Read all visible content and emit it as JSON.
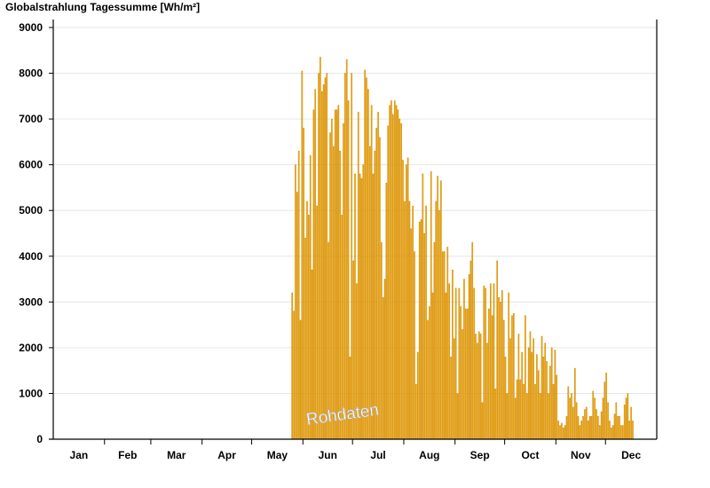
{
  "chart_data": {
    "type": "bar",
    "title": "Globalstrahlung Tagessumme [Wh/m²]",
    "watermark": "Rohdaten",
    "xlabel": "",
    "ylabel": "",
    "ylim": [
      0,
      9200
    ],
    "yticks": [
      "0",
      "1000",
      "2000",
      "3000",
      "4000",
      "5000",
      "6000",
      "7000",
      "8000",
      "9000"
    ],
    "months": [
      "Jan",
      "Feb",
      "Mar",
      "Apr",
      "May",
      "Jun",
      "Jul",
      "Aug",
      "Sep",
      "Oct",
      "Nov",
      "Dec"
    ],
    "days_in_month": [
      31,
      28,
      31,
      30,
      31,
      30,
      31,
      31,
      30,
      31,
      30,
      31
    ],
    "grid": "horizontal",
    "bar_color": "#FFB300",
    "bar_edge_color": "#C98200",
    "series": [
      {
        "first_day_of_year": 144,
        "values": [
          3200,
          2800,
          6000,
          5400,
          6300,
          2600,
          8050,
          6800,
          4400,
          5200,
          4900,
          6200,
          3700,
          7200,
          7650,
          5100,
          8000,
          8350,
          7600,
          7750,
          7900,
          8000,
          4300,
          6700,
          7000,
          6400,
          7200,
          7200,
          7300,
          6300,
          4900,
          6900,
          8000,
          8300,
          7400,
          1800,
          8000,
          3900,
          5800,
          3400,
          7150,
          5800,
          5700,
          6000,
          8070,
          7900,
          7650,
          6400,
          7300,
          5800,
          6300,
          6800,
          7150,
          6600,
          4300,
          3100,
          3500,
          5600,
          6850,
          7300,
          7400,
          7100,
          7400,
          7300,
          7200,
          7000,
          6900,
          6100,
          5200,
          6000,
          6150,
          5200,
          4600,
          5100,
          4100,
          1200,
          1900,
          4750,
          4800,
          5800,
          4500,
          5100,
          2600,
          2900,
          5850,
          3200,
          4300,
          5200,
          5750,
          5000,
          5650,
          4100,
          4100,
          3200,
          4200,
          3400,
          1800,
          3700,
          2200,
          3300,
          1000,
          3300,
          2900,
          2400,
          3500,
          2850,
          2850,
          3600,
          3900,
          4300,
          3300,
          2300,
          2100,
          2350,
          2300,
          800,
          3350,
          3300,
          2100,
          2850,
          3400,
          2700,
          3400,
          1100,
          3900,
          3100,
          3000,
          3250,
          2600,
          1800,
          1000,
          3200,
          2200,
          2700,
          2750,
          900,
          1300,
          2300,
          1300,
          1900,
          1200,
          2700,
          1000,
          2000,
          2350,
          1900,
          2200,
          1200,
          1850,
          1500,
          1000,
          2250,
          1800,
          2100,
          1700,
          1000,
          1600,
          2000,
          1200,
          1950,
          1400,
          400,
          300,
          350,
          250,
          300,
          500,
          1150,
          900,
          1000,
          700,
          1550,
          800,
          500,
          300,
          400,
          500,
          650,
          700,
          400,
          500,
          500,
          1050,
          900,
          650,
          500,
          300,
          600,
          900,
          1250,
          1450,
          800,
          400,
          250,
          300,
          550,
          800,
          500,
          500,
          300,
          300,
          750,
          900,
          1000,
          400,
          700,
          400
        ]
      }
    ]
  }
}
